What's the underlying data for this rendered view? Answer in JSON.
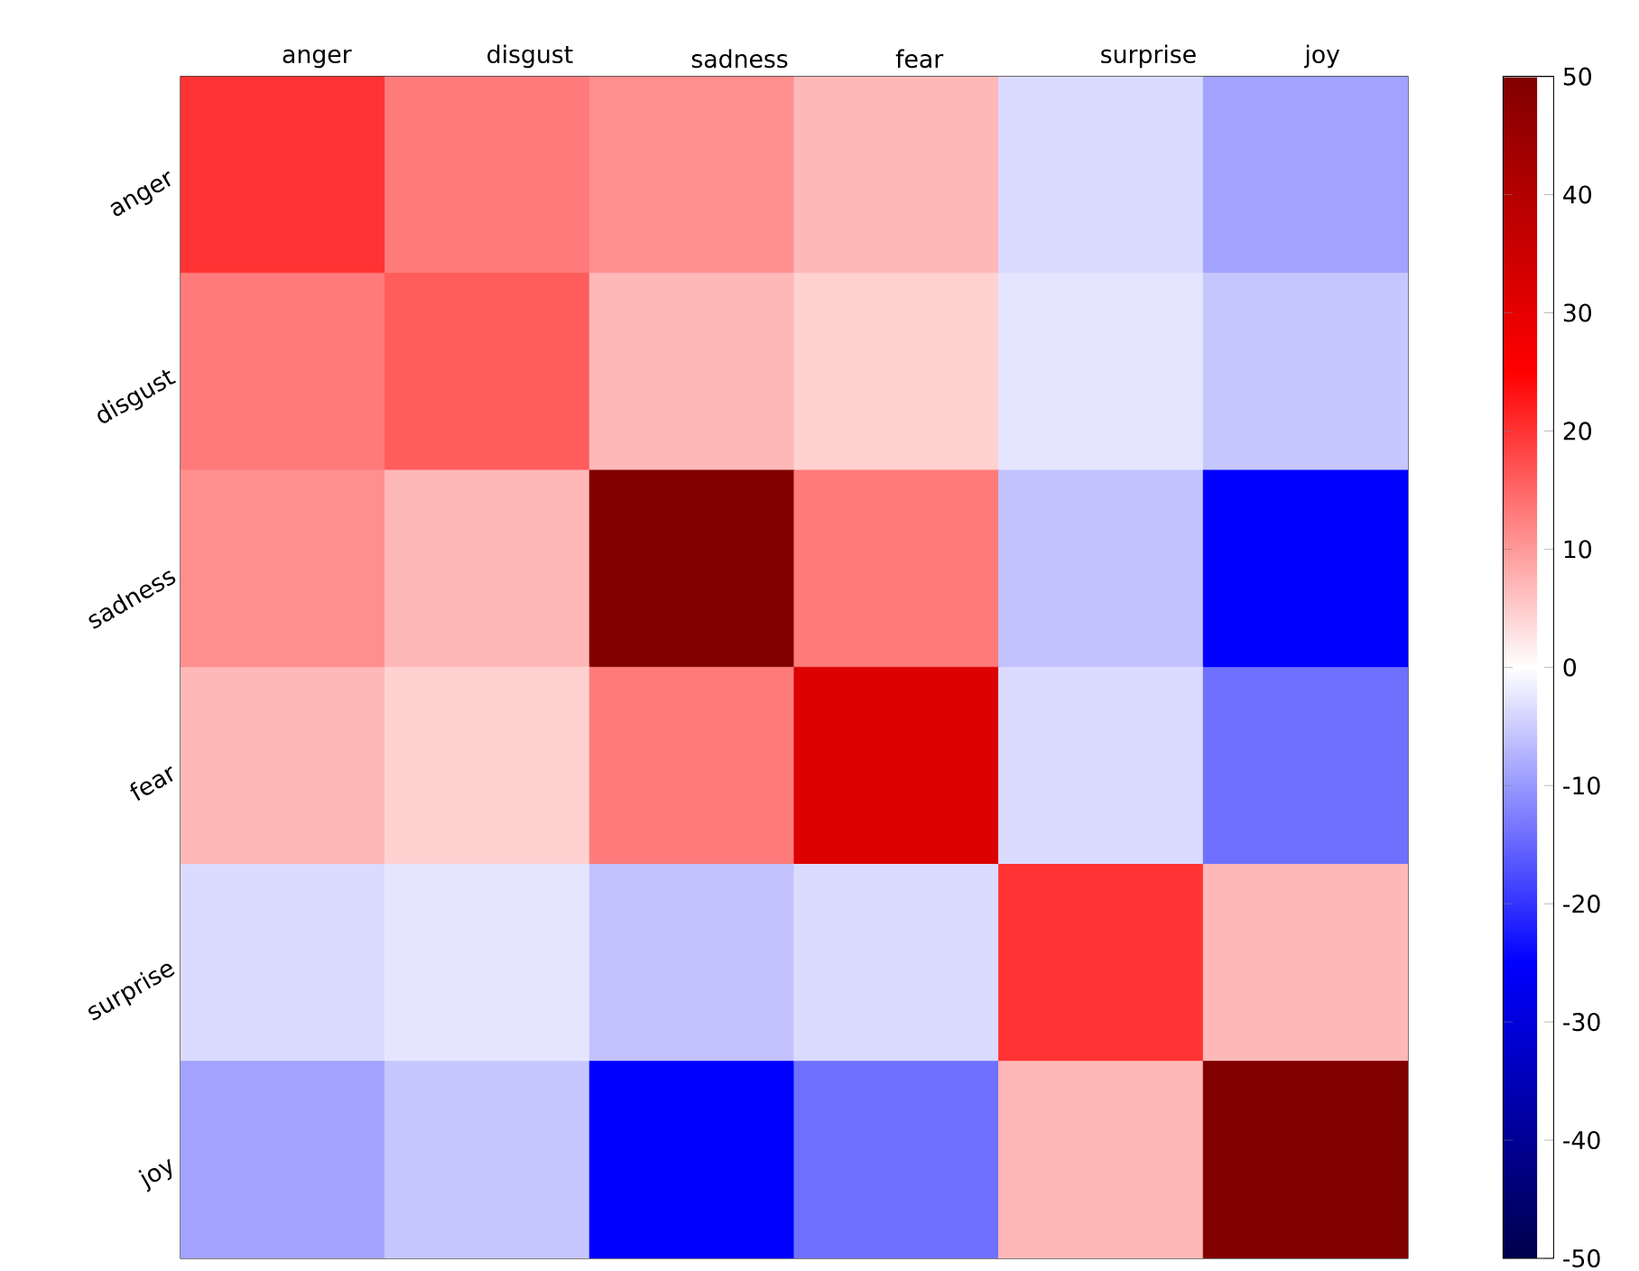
{
  "chart_data": {
    "type": "heatmap",
    "categories": [
      "anger",
      "disgust",
      "sadness",
      "fear",
      "surprise",
      "joy"
    ],
    "y_categories": [
      "anger",
      "disgust",
      "sadness",
      "fear",
      "surprise",
      "joy"
    ],
    "cells": [
      [
        20,
        13,
        11,
        7,
        -3.5,
        -9
      ],
      [
        13,
        16,
        7,
        4.5,
        -2.5,
        -5.5
      ],
      [
        11,
        7,
        50,
        13,
        -6,
        -25
      ],
      [
        7,
        4.5,
        13,
        32,
        -3.5,
        -14
      ],
      [
        -3.5,
        -2.5,
        -6,
        -3.5,
        20,
        7
      ],
      [
        -9,
        -5.5,
        -25,
        -14,
        7,
        50
      ]
    ],
    "clim": [
      -50,
      50
    ],
    "cticks": [
      -50,
      -40,
      -30,
      -20,
      -10,
      0,
      10,
      20,
      30,
      40,
      50
    ]
  }
}
